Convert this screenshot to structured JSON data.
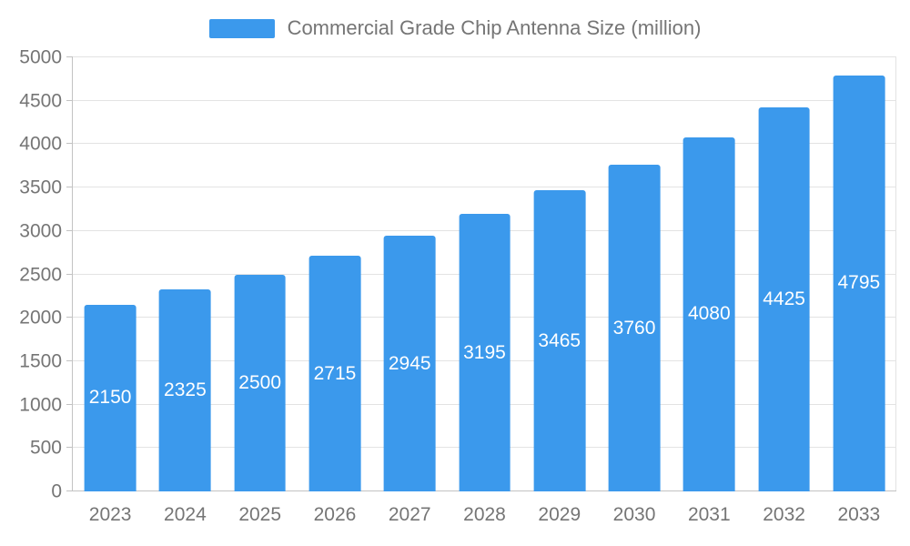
{
  "legend": {
    "label": "Commercial Grade Chip Antenna Size (million)"
  },
  "chart_data": {
    "type": "bar",
    "title": "Commercial Grade Chip Antenna Size (million)",
    "categories": [
      "2023",
      "2024",
      "2025",
      "2026",
      "2027",
      "2028",
      "2029",
      "2030",
      "2031",
      "2032",
      "2033"
    ],
    "values": [
      2150,
      2325,
      2500,
      2715,
      2945,
      3195,
      3465,
      3760,
      4080,
      4425,
      4795
    ],
    "xlabel": "",
    "ylabel": "",
    "ylim": [
      0,
      5000
    ],
    "ytick_step": 500,
    "grid": true,
    "legend_position": "top-center",
    "bar_color": "#3b99ec",
    "value_label_color": "#ffffff",
    "axis_text_color": "#757575",
    "grid_color": "#e3e3e3"
  }
}
